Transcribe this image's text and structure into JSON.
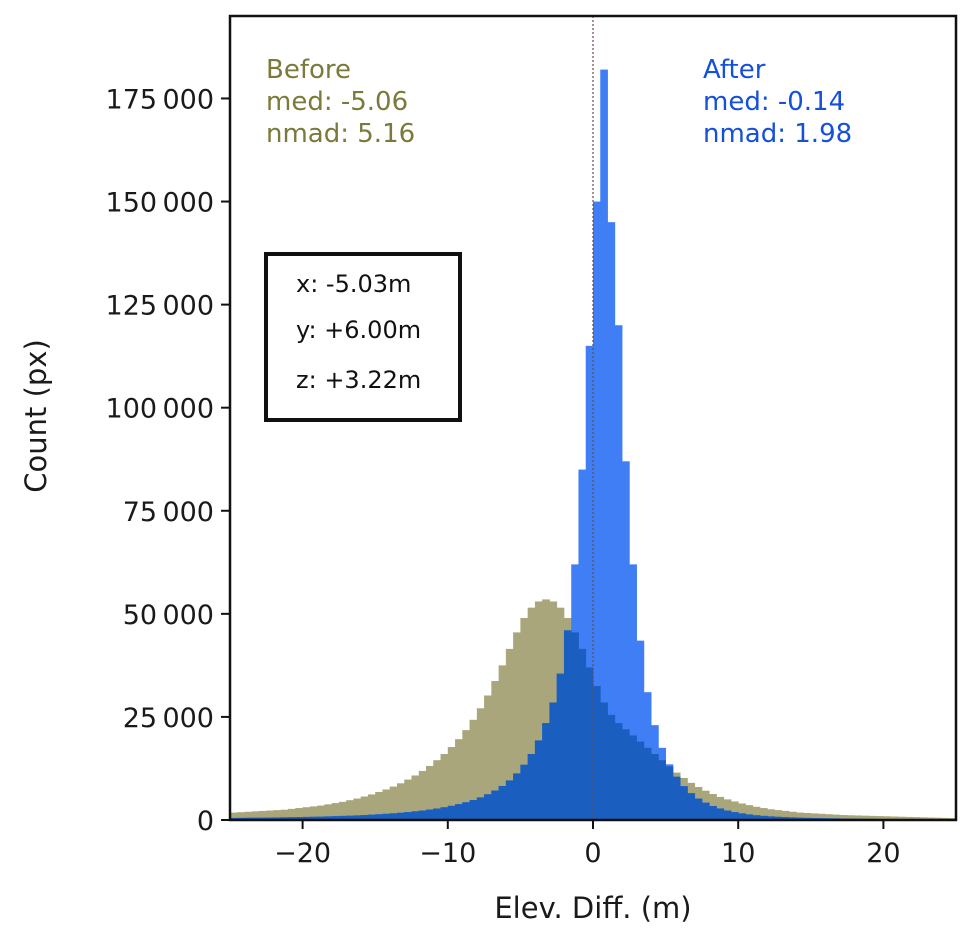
{
  "chart_data": {
    "type": "histogram",
    "xlabel": "Elev. Diff. (m)",
    "ylabel": "Count (px)",
    "xlim": [
      -25,
      25
    ],
    "ylim": [
      0,
      195000
    ],
    "xticks": [
      -20,
      -10,
      0,
      10,
      20
    ],
    "xtick_labels": [
      "−20",
      "−10",
      "0",
      "10",
      "20"
    ],
    "yticks": [
      0,
      25000,
      50000,
      75000,
      100000,
      125000,
      150000,
      175000
    ],
    "ytick_labels": [
      "0",
      "25 000",
      "50 000",
      "75 000",
      "100 000",
      "125 000",
      "150 000",
      "175 000"
    ],
    "grid": false,
    "bin_width": 0.5,
    "bin_start": -25,
    "zero_line": 0,
    "series": [
      {
        "name": "Before",
        "color": "#a8a67a",
        "values": [
          1800,
          1900,
          2000,
          2100,
          2200,
          2300,
          2400,
          2500,
          2700,
          2900,
          3100,
          3300,
          3500,
          3800,
          4100,
          4400,
          4800,
          5200,
          5700,
          6200,
          6800,
          7400,
          8100,
          8900,
          9800,
          10800,
          11900,
          13100,
          14500,
          16000,
          17700,
          19600,
          21800,
          24300,
          27100,
          30200,
          33700,
          37500,
          41500,
          45500,
          49000,
          51500,
          53000,
          53500,
          53000,
          51500,
          49000,
          45500,
          41500,
          37000,
          32500,
          28500,
          25500,
          23500,
          22000,
          20500,
          19000,
          17500,
          16000,
          14500,
          13000,
          11500,
          10200,
          9000,
          8000,
          7100,
          6300,
          5600,
          5000,
          4500,
          4000,
          3600,
          3200,
          2900,
          2600,
          2400,
          2200,
          2000,
          1800,
          1700,
          1600,
          1500,
          1400,
          1300,
          1200,
          1150,
          1100,
          1050,
          1000,
          950,
          900,
          850,
          800,
          750,
          700,
          650,
          600,
          550,
          500,
          450
        ]
      },
      {
        "name": "After",
        "color": "#3f7ef5",
        "values": [
          500,
          520,
          540,
          560,
          580,
          600,
          620,
          650,
          680,
          710,
          750,
          790,
          830,
          880,
          930,
          990,
          1050,
          1120,
          1200,
          1290,
          1390,
          1500,
          1620,
          1760,
          1920,
          2100,
          2300,
          2530,
          2790,
          3090,
          3440,
          3840,
          4300,
          4840,
          5480,
          6240,
          7150,
          8250,
          9600,
          11300,
          13400,
          16000,
          19300,
          23500,
          28500,
          35500,
          46000,
          62000,
          85000,
          115000,
          150000,
          182000,
          145000,
          120000,
          87000,
          62000,
          43500,
          31000,
          23000,
          17500,
          13500,
          10500,
          8200,
          6500,
          5200,
          4200,
          3400,
          2800,
          2300,
          1900,
          1600,
          1350,
          1150,
          1000,
          880,
          780,
          700,
          630,
          570,
          520,
          480,
          440,
          410,
          380,
          350,
          330,
          310,
          290,
          270,
          250,
          240,
          230,
          220,
          210,
          200,
          190,
          180,
          170,
          160,
          150
        ]
      }
    ],
    "annotations": {
      "before": {
        "title": "Before",
        "median": "med: -5.06",
        "nmad": "nmad: 5.16",
        "color": "#7a7a3a"
      },
      "after": {
        "title": "After",
        "median": "med: -0.14",
        "nmad": "nmad: 1.98",
        "color": "#1450d8"
      }
    },
    "offset_box": {
      "x": "x: -5.03m",
      "y": "y: +6.00m",
      "z": "z: +3.22m"
    },
    "overlap_color": "#1a5fc0"
  }
}
